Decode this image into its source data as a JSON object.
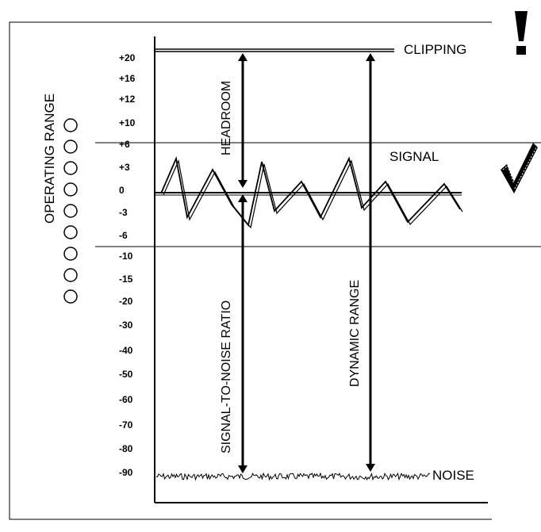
{
  "warning_mark": "!",
  "labels": {
    "clipping": "CLIPPING",
    "signal": "SIGNAL",
    "noise": "NOISE",
    "operating_range": "OPERATING RANGE",
    "headroom": "HEADROOM",
    "signal_to_noise": "SIGNAL-TO-NOISE RATIO",
    "dynamic_range": "DYNAMIC RANGE"
  },
  "scale_ticks": [
    "+20",
    "+16",
    "+12",
    "+10",
    "+6",
    "+3",
    "0",
    "-3",
    "-6",
    "-10",
    "-15",
    "-20",
    "-30",
    "-40",
    "-50",
    "-60",
    "-70",
    "-80",
    "-90"
  ],
  "indicator_leds": {
    "count": 9
  },
  "icons": [
    "warning-exclamation-icon",
    "checkmark-icon"
  ]
}
